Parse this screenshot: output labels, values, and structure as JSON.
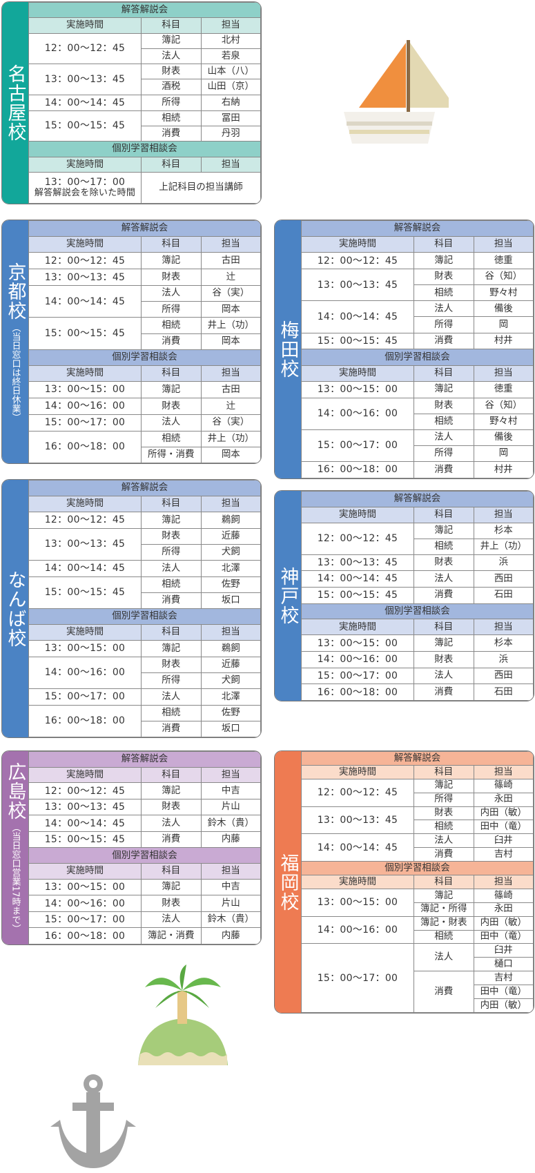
{
  "themes": {
    "teal": {
      "side": "#12a79a",
      "title": "#8ed0c8",
      "head": "#cce9e5"
    },
    "blue": {
      "side": "#4b83c4",
      "title": "#a2b7de",
      "head": "#d3dcf0"
    },
    "purple": {
      "side": "#a472ae",
      "title": "#c9aad3",
      "head": "#e5d8eb"
    },
    "orange": {
      "side": "#ee7b52",
      "title": "#f6b497",
      "head": "#fbdcca"
    }
  },
  "illustrations": [
    "sailboat-icon",
    "palm-island-icon",
    "anchor-icon"
  ],
  "schools": [
    {
      "name": "名古屋校",
      "note": "",
      "theme": "teal",
      "sections": [
        {
          "title": "解答解説会",
          "headers": [
            "実施時間",
            "科目",
            "担当"
          ],
          "rows": [
            {
              "time": "12：00～12：45",
              "subjects": [
                {
                  "subject": "簿記",
                  "staff": [
                    "北村"
                  ]
                },
                {
                  "subject": "法人",
                  "staff": [
                    "若泉"
                  ]
                }
              ]
            },
            {
              "time": "13：00～13：45",
              "subjects": [
                {
                  "subject": "財表",
                  "staff": [
                    "山本（八）"
                  ]
                },
                {
                  "subject": "酒税",
                  "staff": [
                    "山田（京）"
                  ]
                }
              ]
            },
            {
              "time": "14：00～14：45",
              "subjects": [
                {
                  "subject": "所得",
                  "staff": [
                    "右納"
                  ]
                }
              ]
            },
            {
              "time": "15：00～15：45",
              "subjects": [
                {
                  "subject": "相続",
                  "staff": [
                    "冨田"
                  ]
                },
                {
                  "subject": "消費",
                  "staff": [
                    "丹羽"
                  ]
                }
              ]
            }
          ]
        },
        {
          "title": "個別学習相談会",
          "headers": [
            "実施時間",
            "科目",
            "担当"
          ],
          "rows": [
            {
              "time": "13：00～17：00",
              "time_note": "解答解説会を除いた時間",
              "merged": "上記科目の担当講師"
            }
          ]
        }
      ]
    },
    {
      "name": "京都校",
      "note": "（当日窓口は終日休業）",
      "theme": "blue",
      "sections": [
        {
          "title": "解答解説会",
          "headers": [
            "実施時間",
            "科目",
            "担当"
          ],
          "rows": [
            {
              "time": "12：00～12：45",
              "subjects": [
                {
                  "subject": "簿記",
                  "staff": [
                    "古田"
                  ]
                }
              ]
            },
            {
              "time": "13：00～13：45",
              "subjects": [
                {
                  "subject": "財表",
                  "staff": [
                    "辻"
                  ]
                }
              ]
            },
            {
              "time": "14：00～14：45",
              "subjects": [
                {
                  "subject": "法人",
                  "staff": [
                    "谷（実）"
                  ]
                },
                {
                  "subject": "所得",
                  "staff": [
                    "岡本"
                  ]
                }
              ]
            },
            {
              "time": "15：00～15：45",
              "subjects": [
                {
                  "subject": "相続",
                  "staff": [
                    "井上（功）"
                  ]
                },
                {
                  "subject": "消費",
                  "staff": [
                    "岡本"
                  ]
                }
              ]
            }
          ]
        },
        {
          "title": "個別学習相談会",
          "headers": [
            "実施時間",
            "科目",
            "担当"
          ],
          "rows": [
            {
              "time": "13：00～15：00",
              "subjects": [
                {
                  "subject": "簿記",
                  "staff": [
                    "古田"
                  ]
                }
              ]
            },
            {
              "time": "14：00～16：00",
              "subjects": [
                {
                  "subject": "財表",
                  "staff": [
                    "辻"
                  ]
                }
              ]
            },
            {
              "time": "15：00～17：00",
              "subjects": [
                {
                  "subject": "法人",
                  "staff": [
                    "谷（実）"
                  ]
                }
              ]
            },
            {
              "time": "16：00～18：00",
              "subjects": [
                {
                  "subject": "相続",
                  "staff": [
                    "井上（功）"
                  ]
                },
                {
                  "subject": "所得・消費",
                  "staff": [
                    "岡本"
                  ]
                }
              ]
            }
          ]
        }
      ]
    },
    {
      "name": "梅田校",
      "note": "",
      "theme": "blue",
      "sections": [
        {
          "title": "解答解説会",
          "headers": [
            "実施時間",
            "科目",
            "担当"
          ],
          "rows": [
            {
              "time": "12：00～12：45",
              "subjects": [
                {
                  "subject": "簿記",
                  "staff": [
                    "徳重"
                  ]
                }
              ]
            },
            {
              "time": "13：00～13：45",
              "subjects": [
                {
                  "subject": "財表",
                  "staff": [
                    "谷（知）"
                  ]
                },
                {
                  "subject": "相続",
                  "staff": [
                    "野々村"
                  ]
                }
              ]
            },
            {
              "time": "14：00～14：45",
              "subjects": [
                {
                  "subject": "法人",
                  "staff": [
                    "備後"
                  ]
                },
                {
                  "subject": "所得",
                  "staff": [
                    "岡"
                  ]
                }
              ]
            },
            {
              "time": "15：00～15：45",
              "subjects": [
                {
                  "subject": "消費",
                  "staff": [
                    "村井"
                  ]
                }
              ]
            }
          ]
        },
        {
          "title": "個別学習相談会",
          "headers": [
            "実施時間",
            "科目",
            "担当"
          ],
          "rows": [
            {
              "time": "13：00～15：00",
              "subjects": [
                {
                  "subject": "簿記",
                  "staff": [
                    "徳重"
                  ]
                }
              ]
            },
            {
              "time": "14：00～16：00",
              "subjects": [
                {
                  "subject": "財表",
                  "staff": [
                    "谷（知）"
                  ]
                },
                {
                  "subject": "相続",
                  "staff": [
                    "野々村"
                  ]
                }
              ]
            },
            {
              "time": "15：00～17：00",
              "subjects": [
                {
                  "subject": "法人",
                  "staff": [
                    "備後"
                  ]
                },
                {
                  "subject": "所得",
                  "staff": [
                    "岡"
                  ]
                }
              ]
            },
            {
              "time": "16：00～18：00",
              "subjects": [
                {
                  "subject": "消費",
                  "staff": [
                    "村井"
                  ]
                }
              ]
            }
          ]
        }
      ]
    },
    {
      "name": "なんば校",
      "note": "",
      "theme": "blue",
      "sections": [
        {
          "title": "解答解説会",
          "headers": [
            "実施時間",
            "科目",
            "担当"
          ],
          "rows": [
            {
              "time": "12：00～12：45",
              "subjects": [
                {
                  "subject": "簿記",
                  "staff": [
                    "鵜飼"
                  ]
                }
              ]
            },
            {
              "time": "13：00～13：45",
              "subjects": [
                {
                  "subject": "財表",
                  "staff": [
                    "近藤"
                  ]
                },
                {
                  "subject": "所得",
                  "staff": [
                    "犬飼"
                  ]
                }
              ]
            },
            {
              "time": "14：00～14：45",
              "subjects": [
                {
                  "subject": "法人",
                  "staff": [
                    "北澤"
                  ]
                }
              ]
            },
            {
              "time": "15：00～15：45",
              "subjects": [
                {
                  "subject": "相続",
                  "staff": [
                    "佐野"
                  ]
                },
                {
                  "subject": "消費",
                  "staff": [
                    "坂口"
                  ]
                }
              ]
            }
          ]
        },
        {
          "title": "個別学習相談会",
          "headers": [
            "実施時間",
            "科目",
            "担当"
          ],
          "rows": [
            {
              "time": "13：00～15：00",
              "subjects": [
                {
                  "subject": "簿記",
                  "staff": [
                    "鵜飼"
                  ]
                }
              ]
            },
            {
              "time": "14：00～16：00",
              "subjects": [
                {
                  "subject": "財表",
                  "staff": [
                    "近藤"
                  ]
                },
                {
                  "subject": "所得",
                  "staff": [
                    "犬飼"
                  ]
                }
              ]
            },
            {
              "time": "15：00～17：00",
              "subjects": [
                {
                  "subject": "法人",
                  "staff": [
                    "北澤"
                  ]
                }
              ]
            },
            {
              "time": "16：00～18：00",
              "subjects": [
                {
                  "subject": "相続",
                  "staff": [
                    "佐野"
                  ]
                },
                {
                  "subject": "消費",
                  "staff": [
                    "坂口"
                  ]
                }
              ]
            }
          ]
        }
      ]
    },
    {
      "name": "神戸校",
      "note": "",
      "theme": "blue",
      "sections": [
        {
          "title": "解答解説会",
          "headers": [
            "実施時間",
            "科目",
            "担当"
          ],
          "rows": [
            {
              "time": "12：00～12：45",
              "subjects": [
                {
                  "subject": "簿記",
                  "staff": [
                    "杉本"
                  ]
                },
                {
                  "subject": "相続",
                  "staff": [
                    "井上（功）"
                  ]
                }
              ]
            },
            {
              "time": "13：00～13：45",
              "subjects": [
                {
                  "subject": "財表",
                  "staff": [
                    "浜"
                  ]
                }
              ]
            },
            {
              "time": "14：00～14：45",
              "subjects": [
                {
                  "subject": "法人",
                  "staff": [
                    "西田"
                  ]
                }
              ]
            },
            {
              "time": "15：00～15：45",
              "subjects": [
                {
                  "subject": "消費",
                  "staff": [
                    "石田"
                  ]
                }
              ]
            }
          ]
        },
        {
          "title": "個別学習相談会",
          "headers": [
            "実施時間",
            "科目",
            "担当"
          ],
          "rows": [
            {
              "time": "13：00～15：00",
              "subjects": [
                {
                  "subject": "簿記",
                  "staff": [
                    "杉本"
                  ]
                }
              ]
            },
            {
              "time": "14：00～16：00",
              "subjects": [
                {
                  "subject": "財表",
                  "staff": [
                    "浜"
                  ]
                }
              ]
            },
            {
              "time": "15：00～17：00",
              "subjects": [
                {
                  "subject": "法人",
                  "staff": [
                    "西田"
                  ]
                }
              ]
            },
            {
              "time": "16：00～18：00",
              "subjects": [
                {
                  "subject": "消費",
                  "staff": [
                    "石田"
                  ]
                }
              ]
            }
          ]
        }
      ]
    },
    {
      "name": "広島校",
      "note": "（当日窓口営業17時まで）",
      "theme": "purple",
      "sections": [
        {
          "title": "解答解説会",
          "headers": [
            "実施時間",
            "科目",
            "担当"
          ],
          "rows": [
            {
              "time": "12：00～12：45",
              "subjects": [
                {
                  "subject": "簿記",
                  "staff": [
                    "中吉"
                  ]
                }
              ]
            },
            {
              "time": "13：00～13：45",
              "subjects": [
                {
                  "subject": "財表",
                  "staff": [
                    "片山"
                  ]
                }
              ]
            },
            {
              "time": "14：00～14：45",
              "subjects": [
                {
                  "subject": "法人",
                  "staff": [
                    "鈴木（貴）"
                  ]
                }
              ]
            },
            {
              "time": "15：00～15：45",
              "subjects": [
                {
                  "subject": "消費",
                  "staff": [
                    "内藤"
                  ]
                }
              ]
            }
          ]
        },
        {
          "title": "個別学習相談会",
          "headers": [
            "実施時間",
            "科目",
            "担当"
          ],
          "rows": [
            {
              "time": "13：00～15：00",
              "subjects": [
                {
                  "subject": "簿記",
                  "staff": [
                    "中吉"
                  ]
                }
              ]
            },
            {
              "time": "14：00～16：00",
              "subjects": [
                {
                  "subject": "財表",
                  "staff": [
                    "片山"
                  ]
                }
              ]
            },
            {
              "time": "15：00～17：00",
              "subjects": [
                {
                  "subject": "法人",
                  "staff": [
                    "鈴木（貴）"
                  ]
                }
              ]
            },
            {
              "time": "16：00～18：00",
              "subjects": [
                {
                  "subject": "簿記・消費",
                  "staff": [
                    "内藤"
                  ]
                }
              ]
            }
          ]
        }
      ]
    },
    {
      "name": "福岡校",
      "note": "",
      "theme": "orange",
      "sections": [
        {
          "title": "解答解説会",
          "headers": [
            "実施時間",
            "科目",
            "担当"
          ],
          "rows": [
            {
              "time": "12：00～12：45",
              "subjects": [
                {
                  "subject": "簿記",
                  "staff": [
                    "篠崎"
                  ]
                },
                {
                  "subject": "所得",
                  "staff": [
                    "永田"
                  ]
                }
              ]
            },
            {
              "time": "13：00～13：45",
              "subjects": [
                {
                  "subject": "財表",
                  "staff": [
                    "内田（敏）"
                  ]
                },
                {
                  "subject": "相続",
                  "staff": [
                    "田中（竜）"
                  ]
                }
              ]
            },
            {
              "time": "14：00～14：45",
              "subjects": [
                {
                  "subject": "法人",
                  "staff": [
                    "臼井"
                  ]
                },
                {
                  "subject": "消費",
                  "staff": [
                    "吉村"
                  ]
                }
              ]
            }
          ]
        },
        {
          "title": "個別学習相談会",
          "headers": [
            "実施時間",
            "科目",
            "担当"
          ],
          "rows": [
            {
              "time": "13：00～15：00",
              "subjects": [
                {
                  "subject": "簿記",
                  "staff": [
                    "篠崎"
                  ]
                },
                {
                  "subject": "簿記・所得",
                  "staff": [
                    "永田"
                  ]
                }
              ]
            },
            {
              "time": "14：00～16：00",
              "subjects": [
                {
                  "subject": "簿記・財表",
                  "staff": [
                    "内田（敏）"
                  ]
                },
                {
                  "subject": "相続",
                  "staff": [
                    "田中（竜）"
                  ]
                }
              ]
            },
            {
              "time": "15：00～17：00",
              "subjects": [
                {
                  "subject": "法人",
                  "staff": [
                    "臼井",
                    "樋口"
                  ]
                },
                {
                  "subject": "消費",
                  "staff": [
                    "吉村",
                    "田中（竜）",
                    "内田（敏）"
                  ]
                }
              ]
            }
          ]
        }
      ]
    }
  ]
}
